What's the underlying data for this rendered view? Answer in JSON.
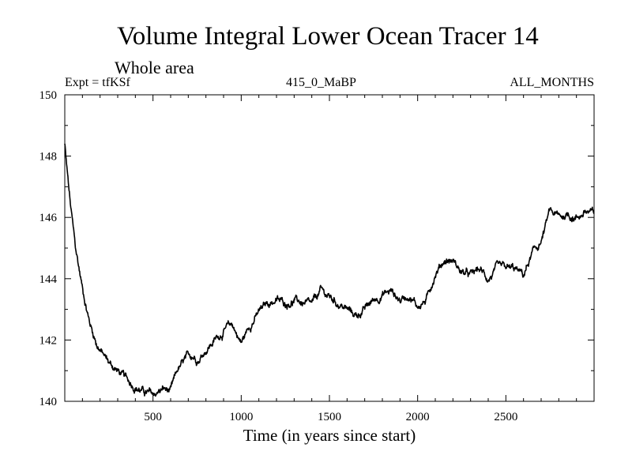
{
  "chart_data": {
    "type": "line",
    "title": "Volume Integral Lower Ocean Tracer 14",
    "subtitle": "Whole area",
    "experiment_label": "Expt = tfKSf",
    "period_label": "415_0_MaBP",
    "months_label": "ALL_MONTHS",
    "xlabel": "Time (in years since start)",
    "ylabel": "",
    "xlim": [
      0,
      3000
    ],
    "ylim": [
      140,
      150
    ],
    "x_ticks": [
      500,
      1000,
      1500,
      2000,
      2500
    ],
    "y_ticks": [
      140,
      142,
      144,
      146,
      148,
      150
    ],
    "grid": false,
    "series": [
      {
        "name": "Tracer 14",
        "noise_amplitude": 0.22,
        "x": [
          0,
          10,
          30,
          60,
          100,
          140,
          180,
          220,
          260,
          300,
          350,
          400,
          450,
          500,
          530,
          560,
          600,
          640,
          680,
          720,
          760,
          800,
          850,
          900,
          950,
          1000,
          1050,
          1100,
          1150,
          1200,
          1250,
          1300,
          1350,
          1400,
          1450,
          1500,
          1550,
          1600,
          1650,
          1700,
          1750,
          1800,
          1850,
          1900,
          1950,
          2000,
          2050,
          2100,
          2150,
          2200,
          2250,
          2300,
          2350,
          2400,
          2450,
          2500,
          2550,
          2600,
          2650,
          2700,
          2750,
          2800,
          2850,
          2900,
          2950,
          3000
        ],
        "values": [
          148.4,
          147.7,
          146.5,
          145.0,
          143.7,
          142.6,
          141.9,
          141.5,
          141.2,
          141.0,
          140.7,
          140.5,
          140.3,
          140.2,
          140.3,
          140.4,
          140.3,
          141.0,
          141.3,
          141.5,
          141.4,
          141.7,
          142.0,
          142.3,
          142.5,
          141.9,
          142.5,
          142.9,
          143.2,
          143.3,
          143.2,
          143.3,
          143.2,
          143.1,
          143.6,
          143.4,
          143.2,
          143.0,
          142.8,
          143.0,
          143.3,
          143.5,
          143.6,
          143.3,
          143.5,
          143.1,
          143.3,
          144.2,
          144.6,
          144.6,
          144.2,
          144.1,
          144.3,
          144.0,
          144.3,
          144.3,
          144.3,
          144.1,
          144.8,
          145.2,
          146.2,
          146.0,
          146.1,
          146.0,
          146.2,
          146.1
        ]
      }
    ]
  }
}
